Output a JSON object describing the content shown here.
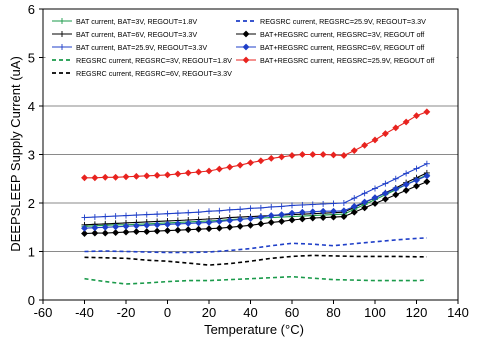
{
  "chart_data": {
    "type": "line",
    "title": "",
    "xlabel": "Temperature (°C)",
    "ylabel": "DEEPSLEEP Supply Current (uA)",
    "xlim": [
      -60,
      140
    ],
    "ylim": [
      0,
      6
    ],
    "xticks": [
      "-60",
      "-40",
      "-20",
      "0",
      "20",
      "40",
      "60",
      "80",
      "100",
      "120",
      "140"
    ],
    "yticks": [
      "0",
      "1",
      "2",
      "3",
      "4",
      "5",
      "6"
    ],
    "grid": "horizontal",
    "legend_position": "top",
    "series": [
      {
        "name": "BAT current, BAT=3V, REGOUT=1.8V",
        "color": "#1a9a4a",
        "dash": "solid",
        "marker": "plus",
        "x": [
          -40,
          -35,
          -30,
          -25,
          -20,
          -15,
          -10,
          -5,
          0,
          5,
          10,
          15,
          20,
          25,
          30,
          35,
          40,
          45,
          50,
          55,
          60,
          65,
          70,
          75,
          80,
          85,
          90,
          95,
          100,
          105,
          110,
          115,
          120,
          125
        ],
        "y": [
          1.52,
          1.53,
          1.54,
          1.55,
          1.55,
          1.56,
          1.57,
          1.58,
          1.59,
          1.6,
          1.61,
          1.62,
          1.63,
          1.64,
          1.66,
          1.67,
          1.68,
          1.69,
          1.7,
          1.71,
          1.72,
          1.73,
          1.74,
          1.75,
          1.76,
          1.77,
          1.87,
          1.97,
          2.07,
          2.17,
          2.27,
          2.38,
          2.48,
          2.58
        ]
      },
      {
        "name": "BAT current, BAT=6V, REGOUT=3.3V",
        "color": "#000000",
        "dash": "solid",
        "marker": "plus",
        "x": [
          -40,
          -35,
          -30,
          -25,
          -20,
          -15,
          -10,
          -5,
          0,
          5,
          10,
          15,
          20,
          25,
          30,
          35,
          40,
          45,
          50,
          55,
          60,
          65,
          70,
          75,
          80,
          85,
          90,
          95,
          100,
          105,
          110,
          115,
          120,
          125
        ],
        "y": [
          1.55,
          1.56,
          1.57,
          1.58,
          1.59,
          1.6,
          1.61,
          1.62,
          1.63,
          1.64,
          1.65,
          1.66,
          1.67,
          1.68,
          1.7,
          1.71,
          1.72,
          1.73,
          1.74,
          1.75,
          1.76,
          1.77,
          1.78,
          1.79,
          1.8,
          1.81,
          1.91,
          2.01,
          2.11,
          2.21,
          2.31,
          2.42,
          2.52,
          2.62
        ]
      },
      {
        "name": "BAT current, BAT=25.9V, REGOUT=3.3V",
        "color": "#1f3fc8",
        "dash": "solid",
        "marker": "plus",
        "x": [
          -40,
          -35,
          -30,
          -25,
          -20,
          -15,
          -10,
          -5,
          0,
          5,
          10,
          15,
          20,
          25,
          30,
          35,
          40,
          45,
          50,
          55,
          60,
          65,
          70,
          75,
          80,
          85,
          90,
          95,
          100,
          105,
          110,
          115,
          120,
          125
        ],
        "y": [
          1.7,
          1.71,
          1.72,
          1.73,
          1.74,
          1.75,
          1.76,
          1.77,
          1.78,
          1.79,
          1.8,
          1.81,
          1.83,
          1.84,
          1.86,
          1.87,
          1.89,
          1.9,
          1.92,
          1.93,
          1.95,
          1.96,
          1.97,
          1.98,
          1.99,
          2.0,
          2.1,
          2.2,
          2.3,
          2.4,
          2.5,
          2.61,
          2.71,
          2.81
        ]
      },
      {
        "name": "REGSRC current, REGSRC=3V, REGOUT=1.8V",
        "color": "#1a9a4a",
        "dash": "dashed",
        "marker": "none",
        "x": [
          -40,
          -30,
          -20,
          -10,
          0,
          10,
          20,
          30,
          40,
          50,
          60,
          70,
          80,
          90,
          100,
          110,
          120,
          125
        ],
        "y": [
          0.44,
          0.38,
          0.33,
          0.35,
          0.38,
          0.4,
          0.4,
          0.42,
          0.44,
          0.46,
          0.48,
          0.45,
          0.42,
          0.41,
          0.4,
          0.4,
          0.4,
          0.41
        ]
      },
      {
        "name": "REGSRC current, REGSRC=6V, REGOUT=3.3V",
        "color": "#000000",
        "dash": "dashed",
        "marker": "none",
        "x": [
          -40,
          -30,
          -20,
          -10,
          0,
          10,
          20,
          30,
          40,
          50,
          60,
          70,
          80,
          90,
          100,
          110,
          120,
          125
        ],
        "y": [
          0.88,
          0.87,
          0.86,
          0.82,
          0.8,
          0.76,
          0.72,
          0.75,
          0.8,
          0.86,
          0.9,
          0.92,
          0.91,
          0.9,
          0.9,
          0.9,
          0.89,
          0.89
        ]
      },
      {
        "name": "REGSRC current, REGSRC=25.9V, REGOUT=3.3V",
        "color": "#1f3fc8",
        "dash": "dashed",
        "marker": "none",
        "x": [
          -40,
          -30,
          -20,
          -10,
          0,
          10,
          20,
          30,
          40,
          50,
          60,
          70,
          80,
          90,
          100,
          110,
          120,
          125
        ],
        "y": [
          1.0,
          1.01,
          1.0,
          0.99,
          0.98,
          0.98,
          0.99,
          1.02,
          1.06,
          1.12,
          1.17,
          1.15,
          1.12,
          1.16,
          1.2,
          1.24,
          1.27,
          1.28
        ]
      },
      {
        "name": "BAT+REGSRC current, REGSRC=3V, REGOUT off",
        "color": "#000000",
        "dash": "solid",
        "marker": "diamond",
        "x": [
          -40,
          -35,
          -30,
          -25,
          -20,
          -15,
          -10,
          -5,
          0,
          5,
          10,
          15,
          20,
          25,
          30,
          35,
          40,
          45,
          50,
          55,
          60,
          65,
          70,
          75,
          80,
          85,
          90,
          95,
          100,
          105,
          110,
          115,
          120,
          125
        ],
        "y": [
          1.37,
          1.38,
          1.38,
          1.39,
          1.4,
          1.41,
          1.41,
          1.42,
          1.43,
          1.44,
          1.45,
          1.46,
          1.47,
          1.48,
          1.5,
          1.52,
          1.54,
          1.57,
          1.6,
          1.62,
          1.65,
          1.67,
          1.69,
          1.7,
          1.71,
          1.72,
          1.81,
          1.9,
          1.99,
          2.08,
          2.17,
          2.26,
          2.35,
          2.44
        ]
      },
      {
        "name": "BAT+REGSRC current, REGSRC=6V, REGOUT off",
        "color": "#1f3fc8",
        "dash": "solid",
        "marker": "diamond",
        "x": [
          -40,
          -35,
          -30,
          -25,
          -20,
          -15,
          -10,
          -5,
          0,
          5,
          10,
          15,
          20,
          25,
          30,
          35,
          40,
          45,
          50,
          55,
          60,
          65,
          70,
          75,
          80,
          85,
          90,
          95,
          100,
          105,
          110,
          115,
          120,
          125
        ],
        "y": [
          1.48,
          1.49,
          1.5,
          1.51,
          1.52,
          1.53,
          1.54,
          1.55,
          1.56,
          1.57,
          1.58,
          1.59,
          1.6,
          1.62,
          1.64,
          1.66,
          1.68,
          1.71,
          1.74,
          1.76,
          1.79,
          1.81,
          1.82,
          1.83,
          1.83,
          1.84,
          1.93,
          2.02,
          2.11,
          2.2,
          2.29,
          2.38,
          2.47,
          2.56
        ]
      },
      {
        "name": "BAT+REGSRC current, REGSRC=25.9V, REGOUT off",
        "color": "#e8231f",
        "dash": "solid",
        "marker": "diamond",
        "x": [
          -40,
          -35,
          -30,
          -25,
          -20,
          -15,
          -10,
          -5,
          0,
          5,
          10,
          15,
          20,
          25,
          30,
          35,
          40,
          45,
          50,
          55,
          60,
          65,
          70,
          75,
          80,
          85,
          90,
          95,
          100,
          105,
          110,
          115,
          120,
          125
        ],
        "y": [
          2.52,
          2.52,
          2.53,
          2.53,
          2.54,
          2.55,
          2.56,
          2.57,
          2.58,
          2.6,
          2.62,
          2.64,
          2.66,
          2.7,
          2.74,
          2.78,
          2.83,
          2.87,
          2.92,
          2.95,
          2.98,
          3.0,
          3.0,
          3.0,
          2.99,
          2.98,
          3.08,
          3.19,
          3.3,
          3.43,
          3.55,
          3.67,
          3.8,
          3.88
        ]
      }
    ]
  }
}
